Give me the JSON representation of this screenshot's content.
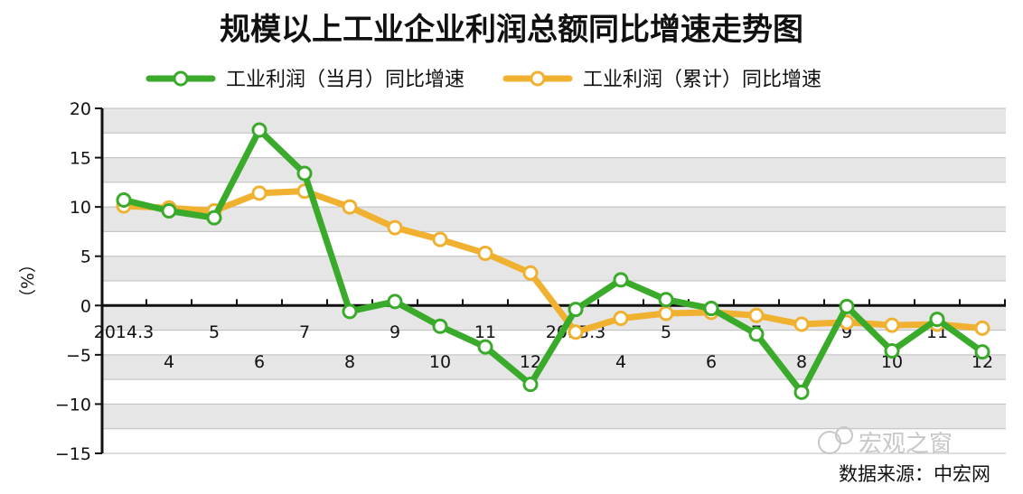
{
  "chart_data": {
    "type": "line",
    "title": "规模以上工业企业利润总额同比增速走势图",
    "ylabel": "（%）",
    "ylim": [
      -15,
      20
    ],
    "yticks": [
      20,
      15,
      10,
      5,
      0,
      -5,
      -10,
      -15
    ],
    "ytick_labels": [
      "20",
      "15",
      "10",
      "5",
      "0",
      "−5",
      "−10",
      "−15"
    ],
    "grid": true,
    "legend_position": "top",
    "categories": [
      "2014.3",
      "4",
      "5",
      "6",
      "7",
      "8",
      "9",
      "10",
      "11",
      "12",
      "2015.3",
      "4",
      "5",
      "6",
      "7",
      "8",
      "9",
      "10",
      "11",
      "12"
    ],
    "series": [
      {
        "name": "工业利润（当月）同比增速",
        "color": "#3aaa2a",
        "values": [
          10.7,
          9.6,
          8.9,
          17.8,
          13.4,
          -0.6,
          0.4,
          -2.1,
          -4.2,
          -8.0,
          -0.4,
          2.6,
          0.6,
          -0.3,
          -2.9,
          -8.8,
          -0.1,
          -4.6,
          -1.4,
          -4.7
        ]
      },
      {
        "name": "工业利润（累计）同比增速",
        "color": "#f0b030",
        "values": [
          10.1,
          9.9,
          9.6,
          11.4,
          11.6,
          10.0,
          7.9,
          6.7,
          5.3,
          3.3,
          -2.7,
          -1.3,
          -0.8,
          -0.7,
          -1.0,
          -1.9,
          -1.7,
          -2.0,
          -1.9,
          -2.3
        ]
      }
    ]
  },
  "source_text": "数据来源：中宏网",
  "watermark_text": "宏观之窗"
}
